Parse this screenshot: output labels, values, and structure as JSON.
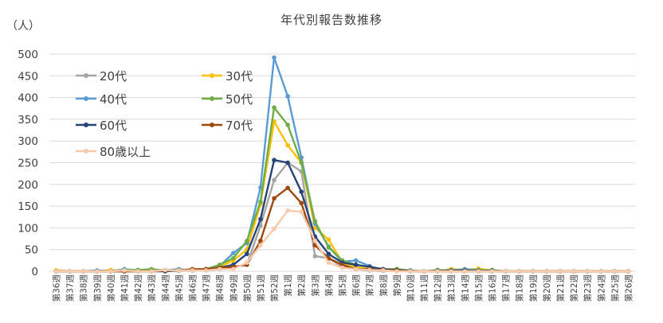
{
  "chart_data": {
    "type": "line",
    "title": "年代別報告数推移",
    "y_unit": "（人）",
    "xlabel": "",
    "ylabel": "",
    "ylim": [
      0,
      500
    ],
    "yticks": [
      0,
      50,
      100,
      150,
      200,
      250,
      300,
      350,
      400,
      450,
      500
    ],
    "grid": true,
    "legend_position": "top-left",
    "categories": [
      "第36週",
      "第37週",
      "第38週",
      "第39週",
      "第40週",
      "第41週",
      "第42週",
      "第43週",
      "第44週",
      "第45週",
      "第46週",
      "第47週",
      "第48週",
      "第49週",
      "第50週",
      "第51週",
      "第52週",
      "第1週",
      "第2週",
      "第3週",
      "第4週",
      "第5週",
      "第6週",
      "第7週",
      "第8週",
      "第9週",
      "第10週",
      "第11週",
      "第12週",
      "第13週",
      "第14週",
      "第15週",
      "第16週",
      "第17週",
      "第18週",
      "第19週",
      "第20週",
      "第21週",
      "第22週",
      "第23週",
      "第24週",
      "第25週",
      "第26週"
    ],
    "series": [
      {
        "name": "20代",
        "color": "#a5a5a5",
        "values": [
          0,
          0,
          0,
          0,
          0,
          0,
          2,
          0,
          2,
          1,
          4,
          2,
          5,
          10,
          15,
          105,
          210,
          250,
          230,
          35,
          30,
          10,
          5,
          2,
          1,
          1,
          0,
          0,
          0,
          0,
          0,
          0,
          0,
          0,
          0,
          0,
          0,
          0,
          0,
          0,
          0,
          0,
          0
        ]
      },
      {
        "name": "30代",
        "color": "#ffc000",
        "values": [
          2,
          0,
          0,
          0,
          3,
          2,
          1,
          3,
          2,
          2,
          3,
          3,
          10,
          25,
          50,
          155,
          345,
          290,
          250,
          100,
          73,
          20,
          10,
          5,
          4,
          2,
          0,
          0,
          0,
          5,
          3,
          6,
          2,
          0,
          0,
          0,
          0,
          0,
          0,
          0,
          0,
          0,
          0
        ]
      },
      {
        "name": "40代",
        "color": "#5b9bd5",
        "values": [
          0,
          0,
          0,
          2,
          0,
          5,
          2,
          2,
          3,
          5,
          2,
          5,
          12,
          42,
          65,
          193,
          492,
          403,
          262,
          110,
          57,
          22,
          25,
          12,
          3,
          3,
          0,
          0,
          2,
          2,
          5,
          3,
          2,
          0,
          0,
          0,
          0,
          0,
          0,
          0,
          0,
          0,
          0
        ]
      },
      {
        "name": "50代",
        "color": "#70ad47",
        "values": [
          0,
          0,
          0,
          0,
          0,
          3,
          3,
          5,
          2,
          3,
          3,
          5,
          15,
          30,
          70,
          160,
          377,
          337,
          250,
          115,
          55,
          25,
          15,
          10,
          5,
          5,
          2,
          0,
          3,
          2,
          3,
          2,
          3,
          0,
          0,
          0,
          0,
          0,
          0,
          0,
          0,
          0,
          0
        ]
      },
      {
        "name": "60代",
        "color": "#264478",
        "values": [
          0,
          0,
          0,
          0,
          0,
          0,
          0,
          0,
          0,
          2,
          2,
          5,
          8,
          15,
          40,
          120,
          256,
          250,
          183,
          80,
          40,
          20,
          15,
          10,
          5,
          3,
          1,
          0,
          1,
          2,
          2,
          1,
          1,
          0,
          0,
          0,
          0,
          0,
          0,
          0,
          0,
          0,
          0
        ]
      },
      {
        "name": "70代",
        "color": "#9e480e",
        "values": [
          0,
          0,
          0,
          0,
          0,
          0,
          0,
          0,
          2,
          2,
          5,
          5,
          8,
          10,
          15,
          70,
          168,
          192,
          157,
          60,
          30,
          15,
          5,
          5,
          3,
          2,
          0,
          0,
          0,
          0,
          0,
          0,
          0,
          0,
          0,
          0,
          0,
          0,
          0,
          0,
          0,
          0,
          0
        ]
      },
      {
        "name": "80歳以上",
        "color": "#f8cbad",
        "values": [
          0,
          0,
          0,
          0,
          0,
          2,
          0,
          0,
          3,
          2,
          2,
          2,
          5,
          5,
          20,
          60,
          98,
          140,
          137,
          70,
          20,
          8,
          5,
          3,
          2,
          0,
          0,
          0,
          0,
          0,
          0,
          0,
          0,
          0,
          0,
          0,
          0,
          0,
          0,
          0,
          0,
          0,
          0
        ]
      }
    ]
  }
}
